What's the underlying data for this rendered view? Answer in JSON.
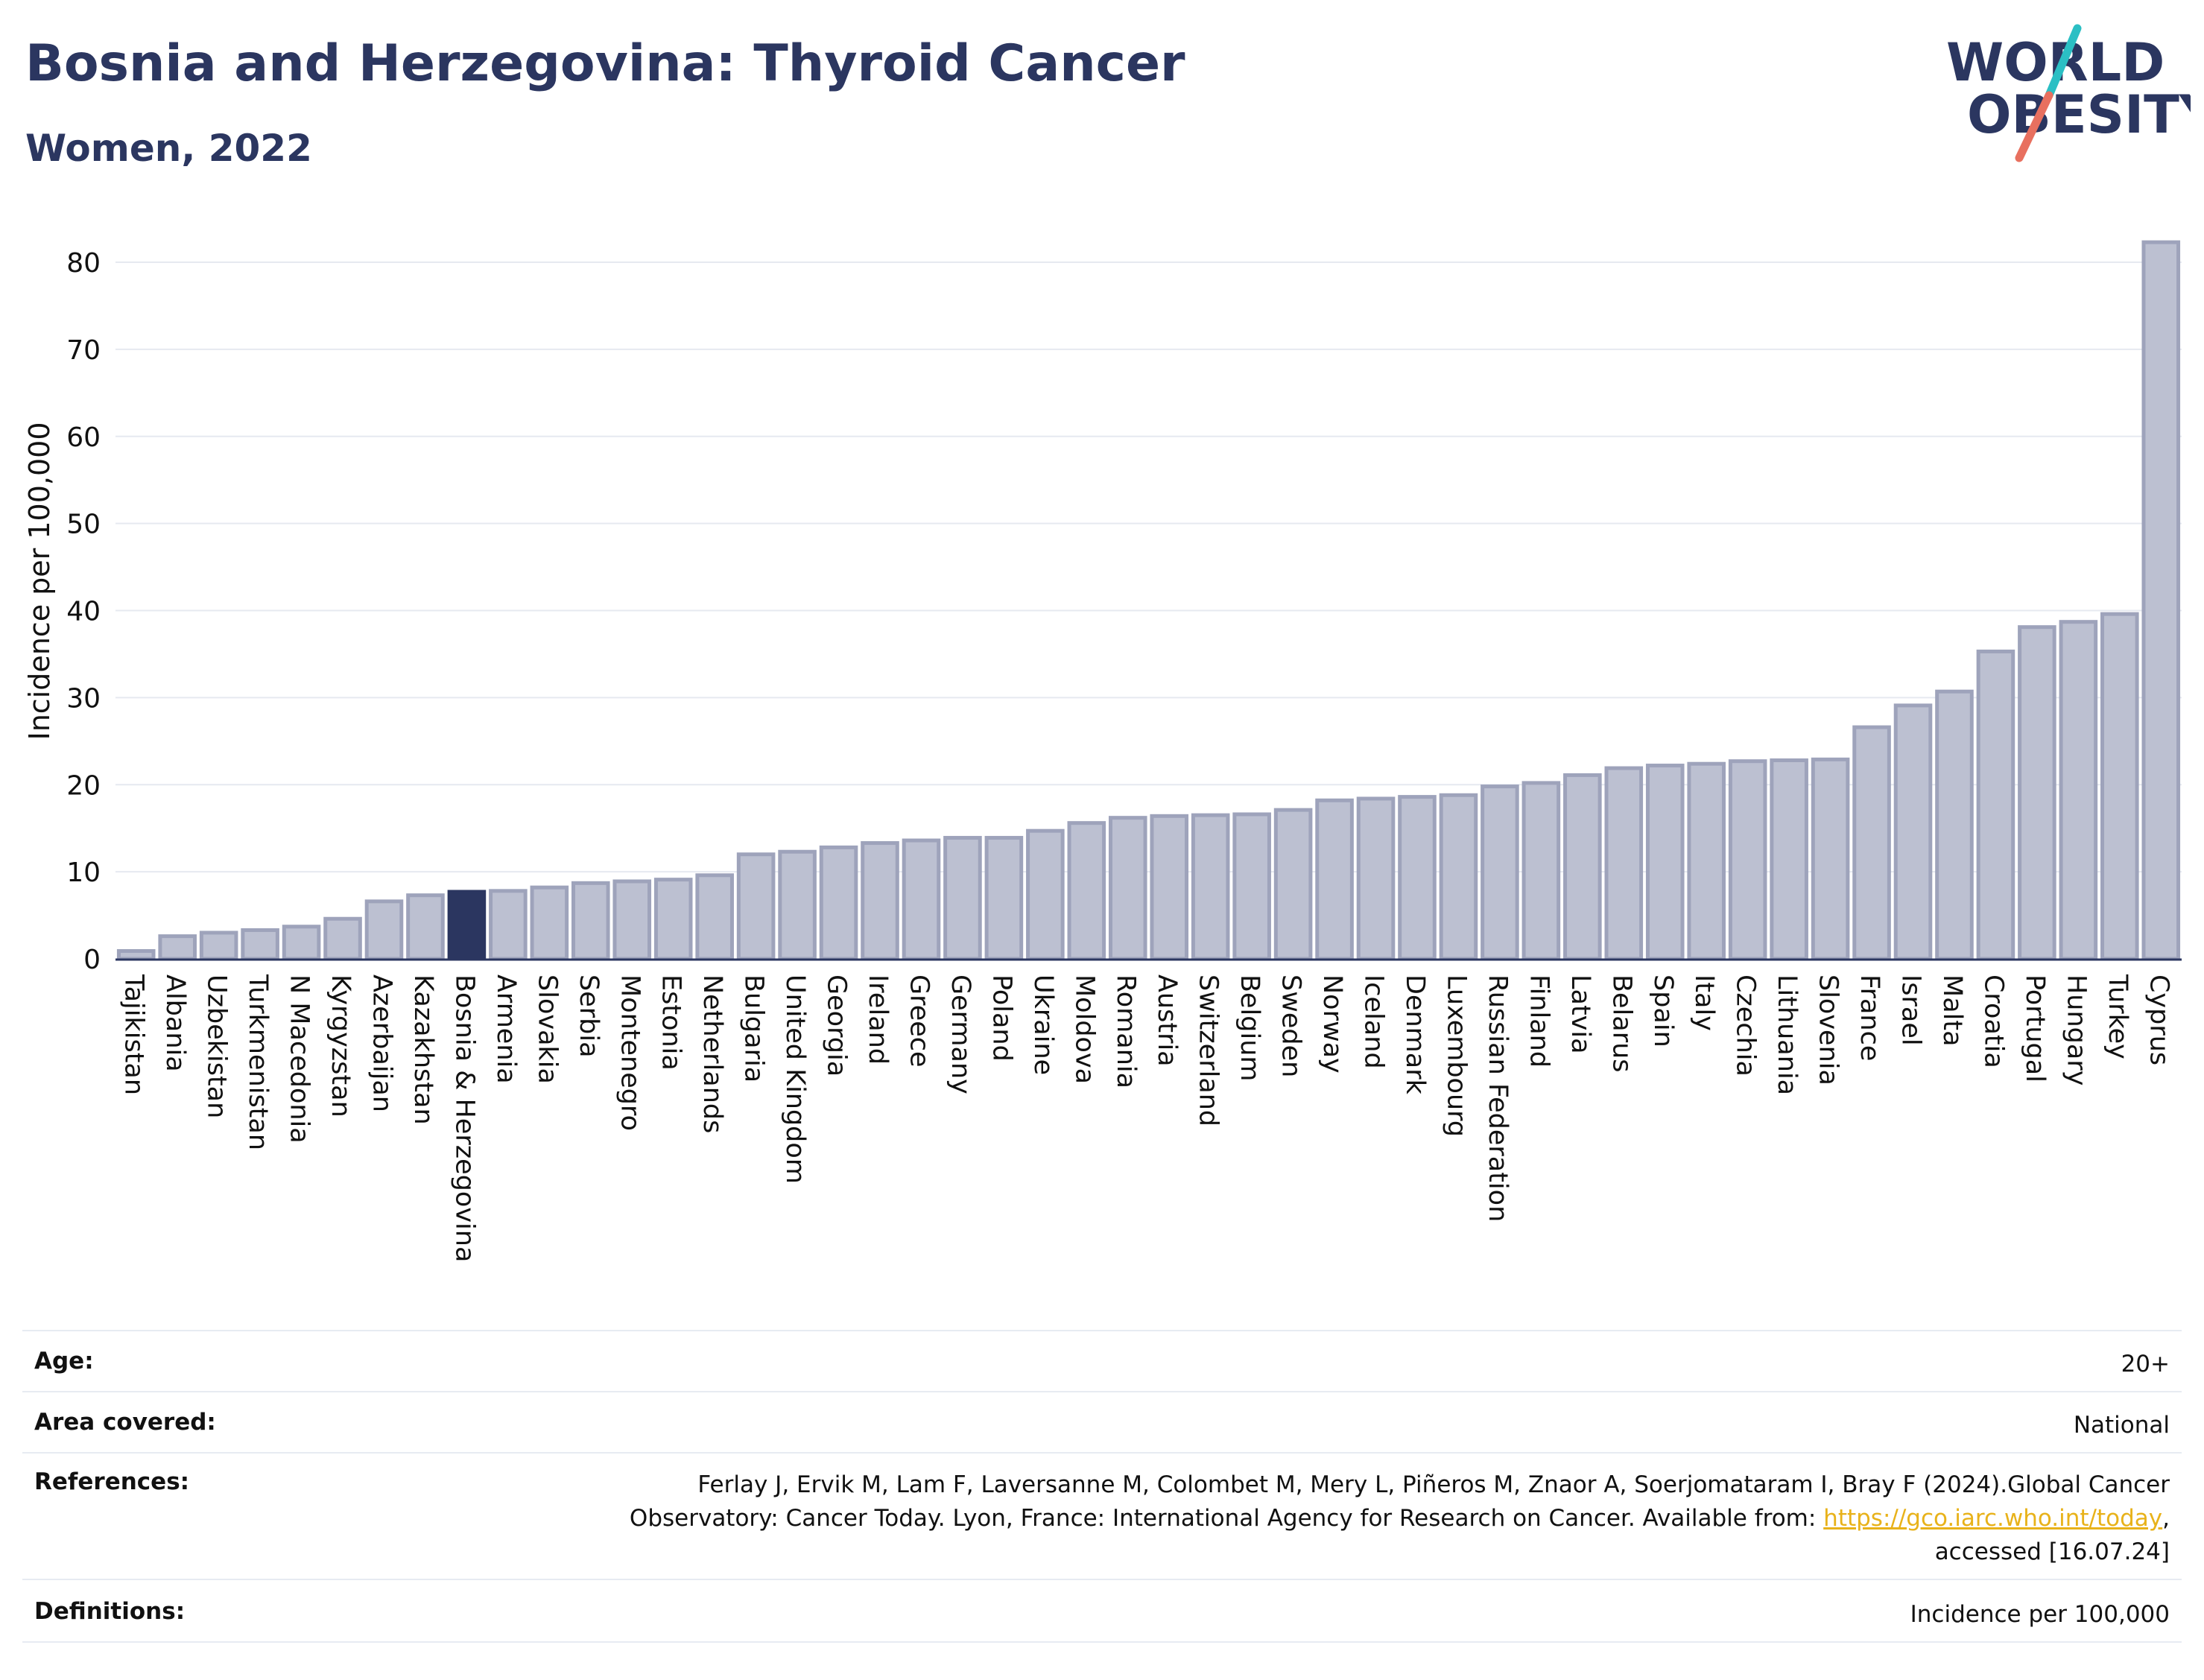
{
  "header": {
    "title": "Bosnia and Herzegovina: Thyroid Cancer",
    "subtitle": "Women, 2022"
  },
  "logo": {
    "line1": "WORLD",
    "line2": "OBESITY"
  },
  "colors": {
    "title": "#2b3660",
    "highlight_bar": "#2b3660",
    "bar_fill": "#bcc0d1",
    "bar_stroke": "#9ea3bb",
    "grid": "#e6e9f0",
    "logo_teal": "#2bbfc4",
    "logo_coral": "#e8705f",
    "link": "#e8b21a"
  },
  "chart_data": {
    "type": "bar",
    "title": "Bosnia and Herzegovina: Thyroid Cancer",
    "subtitle": "Women, 2022",
    "xlabel": "",
    "ylabel": "Incidence per 100,000",
    "ylim": [
      0,
      85
    ],
    "yticks": [
      0,
      10,
      20,
      30,
      40,
      50,
      60,
      70,
      80
    ],
    "grid": true,
    "highlight": "Bosnia & Herzegovina",
    "categories": [
      "Tajikistan",
      "Albania",
      "Uzbekistan",
      "Turkmenistan",
      "N Macedonia",
      "Kyrgyzstan",
      "Azerbaijan",
      "Kazakhstan",
      "Bosnia & Herzegovina",
      "Armenia",
      "Slovakia",
      "Serbia",
      "Montenegro",
      "Estonia",
      "Netherlands",
      "Bulgaria",
      "United Kingdom",
      "Georgia",
      "Ireland",
      "Greece",
      "Germany",
      "Poland",
      "Ukraine",
      "Moldova",
      "Romania",
      "Austria",
      "Switzerland",
      "Belgium",
      "Sweden",
      "Norway",
      "Iceland",
      "Denmark",
      "Luxembourg",
      "Russian Federation",
      "Finland",
      "Latvia",
      "Belarus",
      "Spain",
      "Italy",
      "Czechia",
      "Lithuania",
      "Slovenia",
      "France",
      "Israel",
      "Malta",
      "Croatia",
      "Portugal",
      "Hungary",
      "Turkey",
      "Cyprus"
    ],
    "values": [
      0.9,
      2.6,
      3.0,
      3.3,
      3.7,
      4.6,
      6.6,
      7.3,
      7.7,
      7.8,
      8.2,
      8.7,
      8.9,
      9.1,
      9.6,
      12.0,
      12.3,
      12.8,
      13.3,
      13.6,
      13.9,
      13.9,
      14.7,
      15.6,
      16.2,
      16.4,
      16.5,
      16.6,
      17.1,
      18.2,
      18.4,
      18.6,
      18.8,
      19.8,
      20.2,
      21.1,
      21.9,
      22.2,
      22.4,
      22.7,
      22.8,
      22.9,
      26.6,
      29.1,
      30.7,
      35.3,
      38.1,
      38.7,
      39.6,
      82.3
    ]
  },
  "meta": {
    "age_label": "Age:",
    "age_value": "20+",
    "area_label": "Area covered:",
    "area_value": "National",
    "references_label": "References:",
    "references_line1": "Ferlay J, Ervik M, Lam F, Laversanne M, Colombet M, Mery L, Piñeros M, Znaor A, Soerjomataram I, Bray F (2024).Global Cancer",
    "references_line2_prefix": "Observatory: Cancer Today. Lyon, France: International Agency for Research on Cancer. Available from: ",
    "references_link": "https://gco.iarc.who.int/today",
    "references_line2_suffix": ",",
    "references_line3": "accessed [16.07.24]",
    "definitions_label": "Definitions:",
    "definitions_value": "Incidence per 100,000"
  }
}
